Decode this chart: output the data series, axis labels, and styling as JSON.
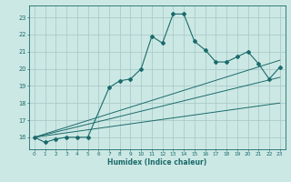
{
  "xlabel": "Humidex (Indice chaleur)",
  "bg_color": "#cce8e4",
  "grid_color": "#aaccca",
  "line_color": "#1a6b6b",
  "xlim": [
    -0.5,
    23.5
  ],
  "ylim": [
    15.3,
    23.7
  ],
  "xticks": [
    0,
    1,
    2,
    3,
    4,
    5,
    6,
    7,
    8,
    9,
    10,
    11,
    12,
    13,
    14,
    15,
    16,
    17,
    18,
    19,
    20,
    21,
    22,
    23
  ],
  "yticks": [
    16,
    17,
    18,
    19,
    20,
    21,
    22,
    23
  ],
  "series": [
    {
      "x": [
        0,
        1,
        2,
        3,
        4,
        5,
        7,
        8,
        9,
        10,
        11,
        12,
        13,
        14,
        15,
        16,
        17,
        18,
        19,
        20,
        21,
        22,
        23
      ],
      "y": [
        16.0,
        15.7,
        15.9,
        16.0,
        16.0,
        16.0,
        18.9,
        19.3,
        19.4,
        20.0,
        21.9,
        21.5,
        23.2,
        23.2,
        21.6,
        21.1,
        20.4,
        20.4,
        20.7,
        21.0,
        20.3,
        19.4,
        20.1
      ]
    },
    {
      "x": [
        0,
        23
      ],
      "y": [
        16.0,
        20.5
      ]
    },
    {
      "x": [
        0,
        23
      ],
      "y": [
        16.0,
        19.5
      ]
    },
    {
      "x": [
        0,
        23
      ],
      "y": [
        16.0,
        18.0
      ]
    }
  ]
}
